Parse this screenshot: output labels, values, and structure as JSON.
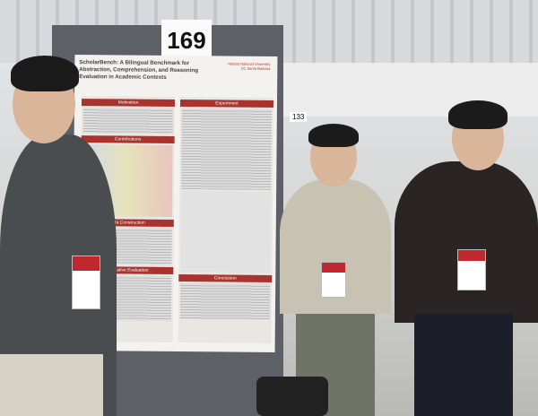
{
  "photo": {
    "booth_number": "169",
    "neighbor_booth_number": "133",
    "poster": {
      "title": "ScholarBench: A Bilingual Benchmark for Abstraction, Comprehension, and Reasoning Evaluation in Academic Contexts",
      "affiliations": [
        "Hanbat National University",
        "UC Santa Barbara"
      ],
      "sections": [
        "Motivation",
        "Contributions",
        "Data Construction",
        "Qualitative Evaluation",
        "Experiment",
        "Conclusion"
      ]
    },
    "colors": {
      "poster_accent": "#a8332f",
      "board": "#5d6067"
    }
  }
}
